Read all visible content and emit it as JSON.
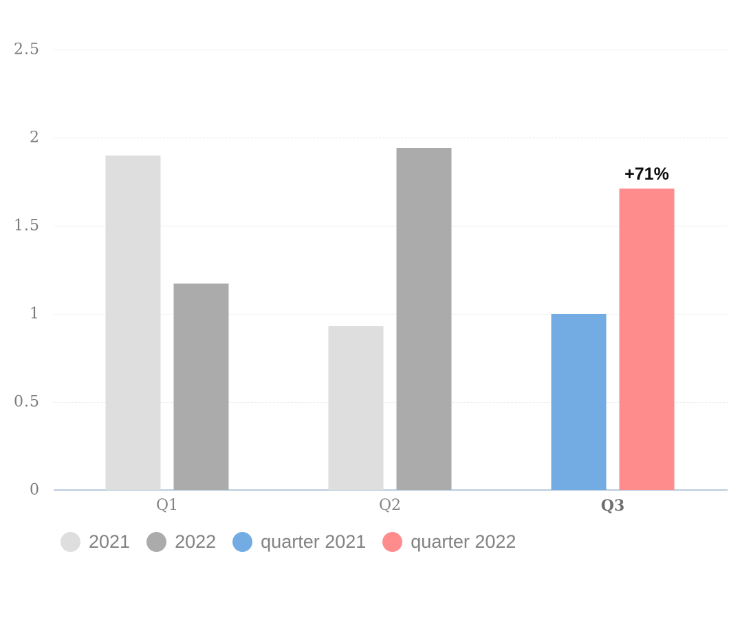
{
  "chart_data": {
    "type": "bar",
    "title": "",
    "xlabel": "",
    "ylabel": "",
    "categories": [
      "Q1",
      "Q2",
      "Q3"
    ],
    "emphasized_category": "Q3",
    "series": [
      {
        "name": "2021",
        "color": "#dedede",
        "values": [
          1.9,
          0.93,
          null
        ]
      },
      {
        "name": "2022",
        "color": "#ababab",
        "values": [
          1.17,
          1.94,
          null
        ]
      },
      {
        "name": "quarter 2021",
        "color": "#73ace3",
        "values": [
          null,
          null,
          1.0
        ]
      },
      {
        "name": "quarter 2022",
        "color": "#fe8c8d",
        "values": [
          null,
          null,
          1.71
        ]
      }
    ],
    "annotations": [
      {
        "text": "+71%",
        "category": "Q3",
        "series": "quarter 2022"
      }
    ],
    "y_ticks": [
      0,
      0.5,
      1,
      1.5,
      2,
      2.5
    ],
    "ylim": [
      0,
      2.5
    ],
    "grid": true,
    "legend_position": "bottom",
    "colors": {
      "axis_baseline": "#b9cade",
      "gridline": "#efefef",
      "tick_text": "#7b7b7b",
      "annotation_text": "#0d0d0d"
    }
  }
}
